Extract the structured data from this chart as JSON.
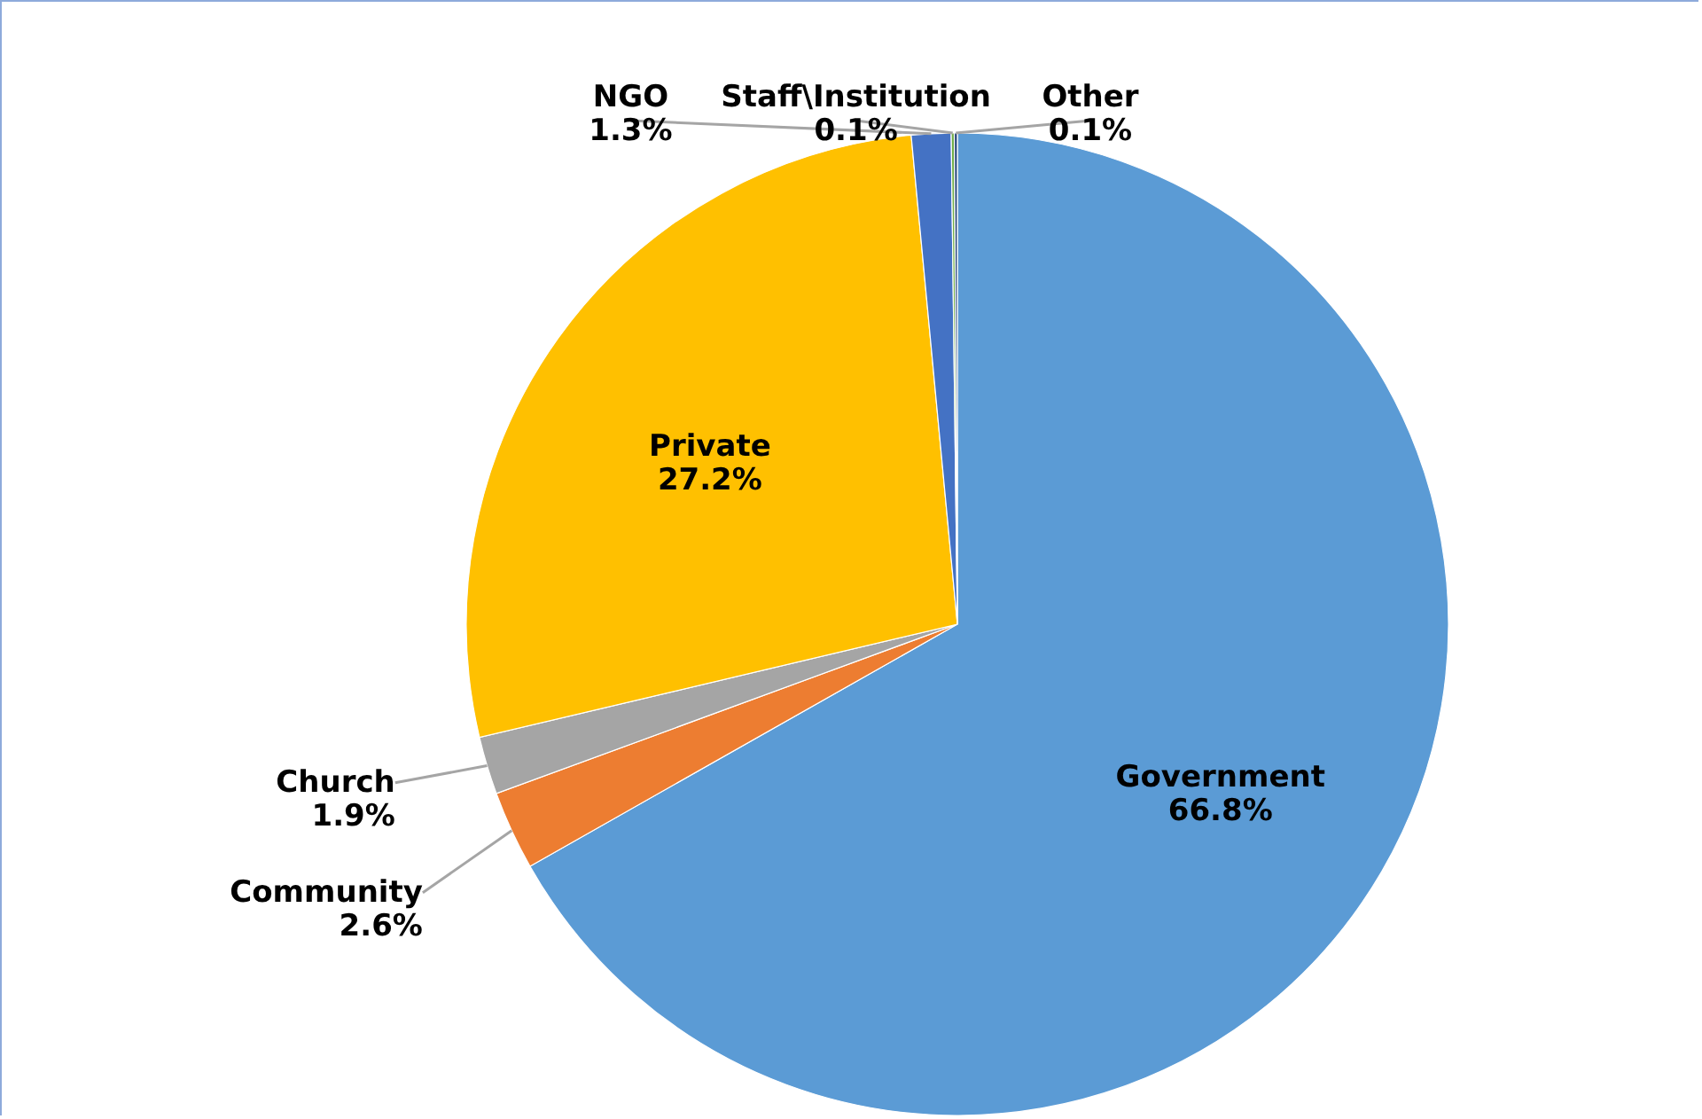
{
  "chart_data": {
    "type": "pie",
    "categories": [
      "Government",
      "Community",
      "Church",
      "Private",
      "NGO",
      "Staff\\Institution",
      "Other"
    ],
    "values": [
      66.8,
      2.6,
      1.9,
      27.2,
      1.3,
      0.1,
      0.1
    ],
    "value_labels": [
      "66.8%",
      "2.6%",
      "1.9%",
      "27.2%",
      "1.3%",
      "0.1%",
      "0.1%"
    ],
    "colors": [
      "#5b9bd5",
      "#ed7d31",
      "#a5a5a5",
      "#ffc000",
      "#4472c4",
      "#70ad47",
      "#264478"
    ]
  }
}
